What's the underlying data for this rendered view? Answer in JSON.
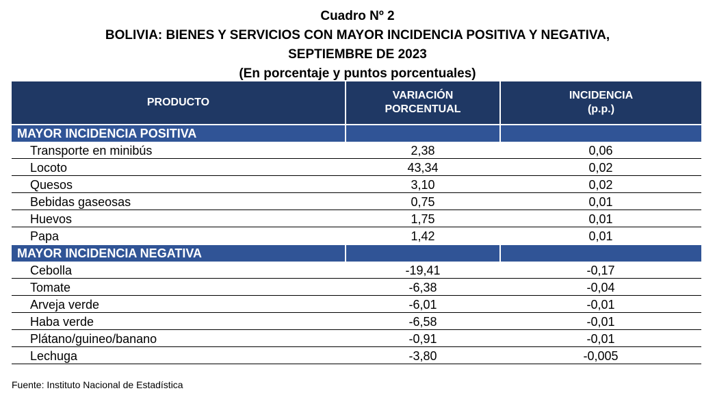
{
  "title": {
    "line1": "Cuadro Nº 2",
    "line2": "BOLIVIA: BIENES Y SERVICIOS CON MAYOR INCIDENCIA POSITIVA Y NEGATIVA,",
    "line3": "SEPTIEMBRE DE 2023",
    "line4": "(En porcentaje y puntos porcentuales)"
  },
  "headers": {
    "producto": "PRODUCTO",
    "variacion_line1": "VARIACIÓN",
    "variacion_line2": "PORCENTUAL",
    "incidencia_line1": "INCIDENCIA",
    "incidencia_line2": "(p.p.)"
  },
  "sections": [
    {
      "label": "MAYOR INCIDENCIA POSITIVA",
      "rows": [
        {
          "producto": "Transporte en minibús",
          "variacion": "2,38",
          "incidencia": "0,06"
        },
        {
          "producto": "Locoto",
          "variacion": "43,34",
          "incidencia": "0,02"
        },
        {
          "producto": "Quesos",
          "variacion": "3,10",
          "incidencia": "0,02"
        },
        {
          "producto": "Bebidas gaseosas",
          "variacion": "0,75",
          "incidencia": "0,01"
        },
        {
          "producto": "Huevos",
          "variacion": "1,75",
          "incidencia": "0,01"
        },
        {
          "producto": "Papa",
          "variacion": "1,42",
          "incidencia": "0,01"
        }
      ]
    },
    {
      "label": "MAYOR INCIDENCIA NEGATIVA",
      "rows": [
        {
          "producto": "Cebolla",
          "variacion": "-19,41",
          "incidencia": "-0,17"
        },
        {
          "producto": "Tomate",
          "variacion": "-6,38",
          "incidencia": "-0,04"
        },
        {
          "producto": "Arveja verde",
          "variacion": "-6,01",
          "incidencia": "-0,01"
        },
        {
          "producto": "Haba verde",
          "variacion": "-6,58",
          "incidencia": "-0,01"
        },
        {
          "producto": "Plátano/guineo/banano",
          "variacion": "-0,91",
          "incidencia": "-0,01"
        },
        {
          "producto": "Lechuga",
          "variacion": "-3,80",
          "incidencia": "-0,005"
        }
      ]
    }
  ],
  "footer": "Fuente: Instituto Nacional de Estadística",
  "colors": {
    "header_bg": "#1f3864",
    "section_bg": "#305496"
  }
}
